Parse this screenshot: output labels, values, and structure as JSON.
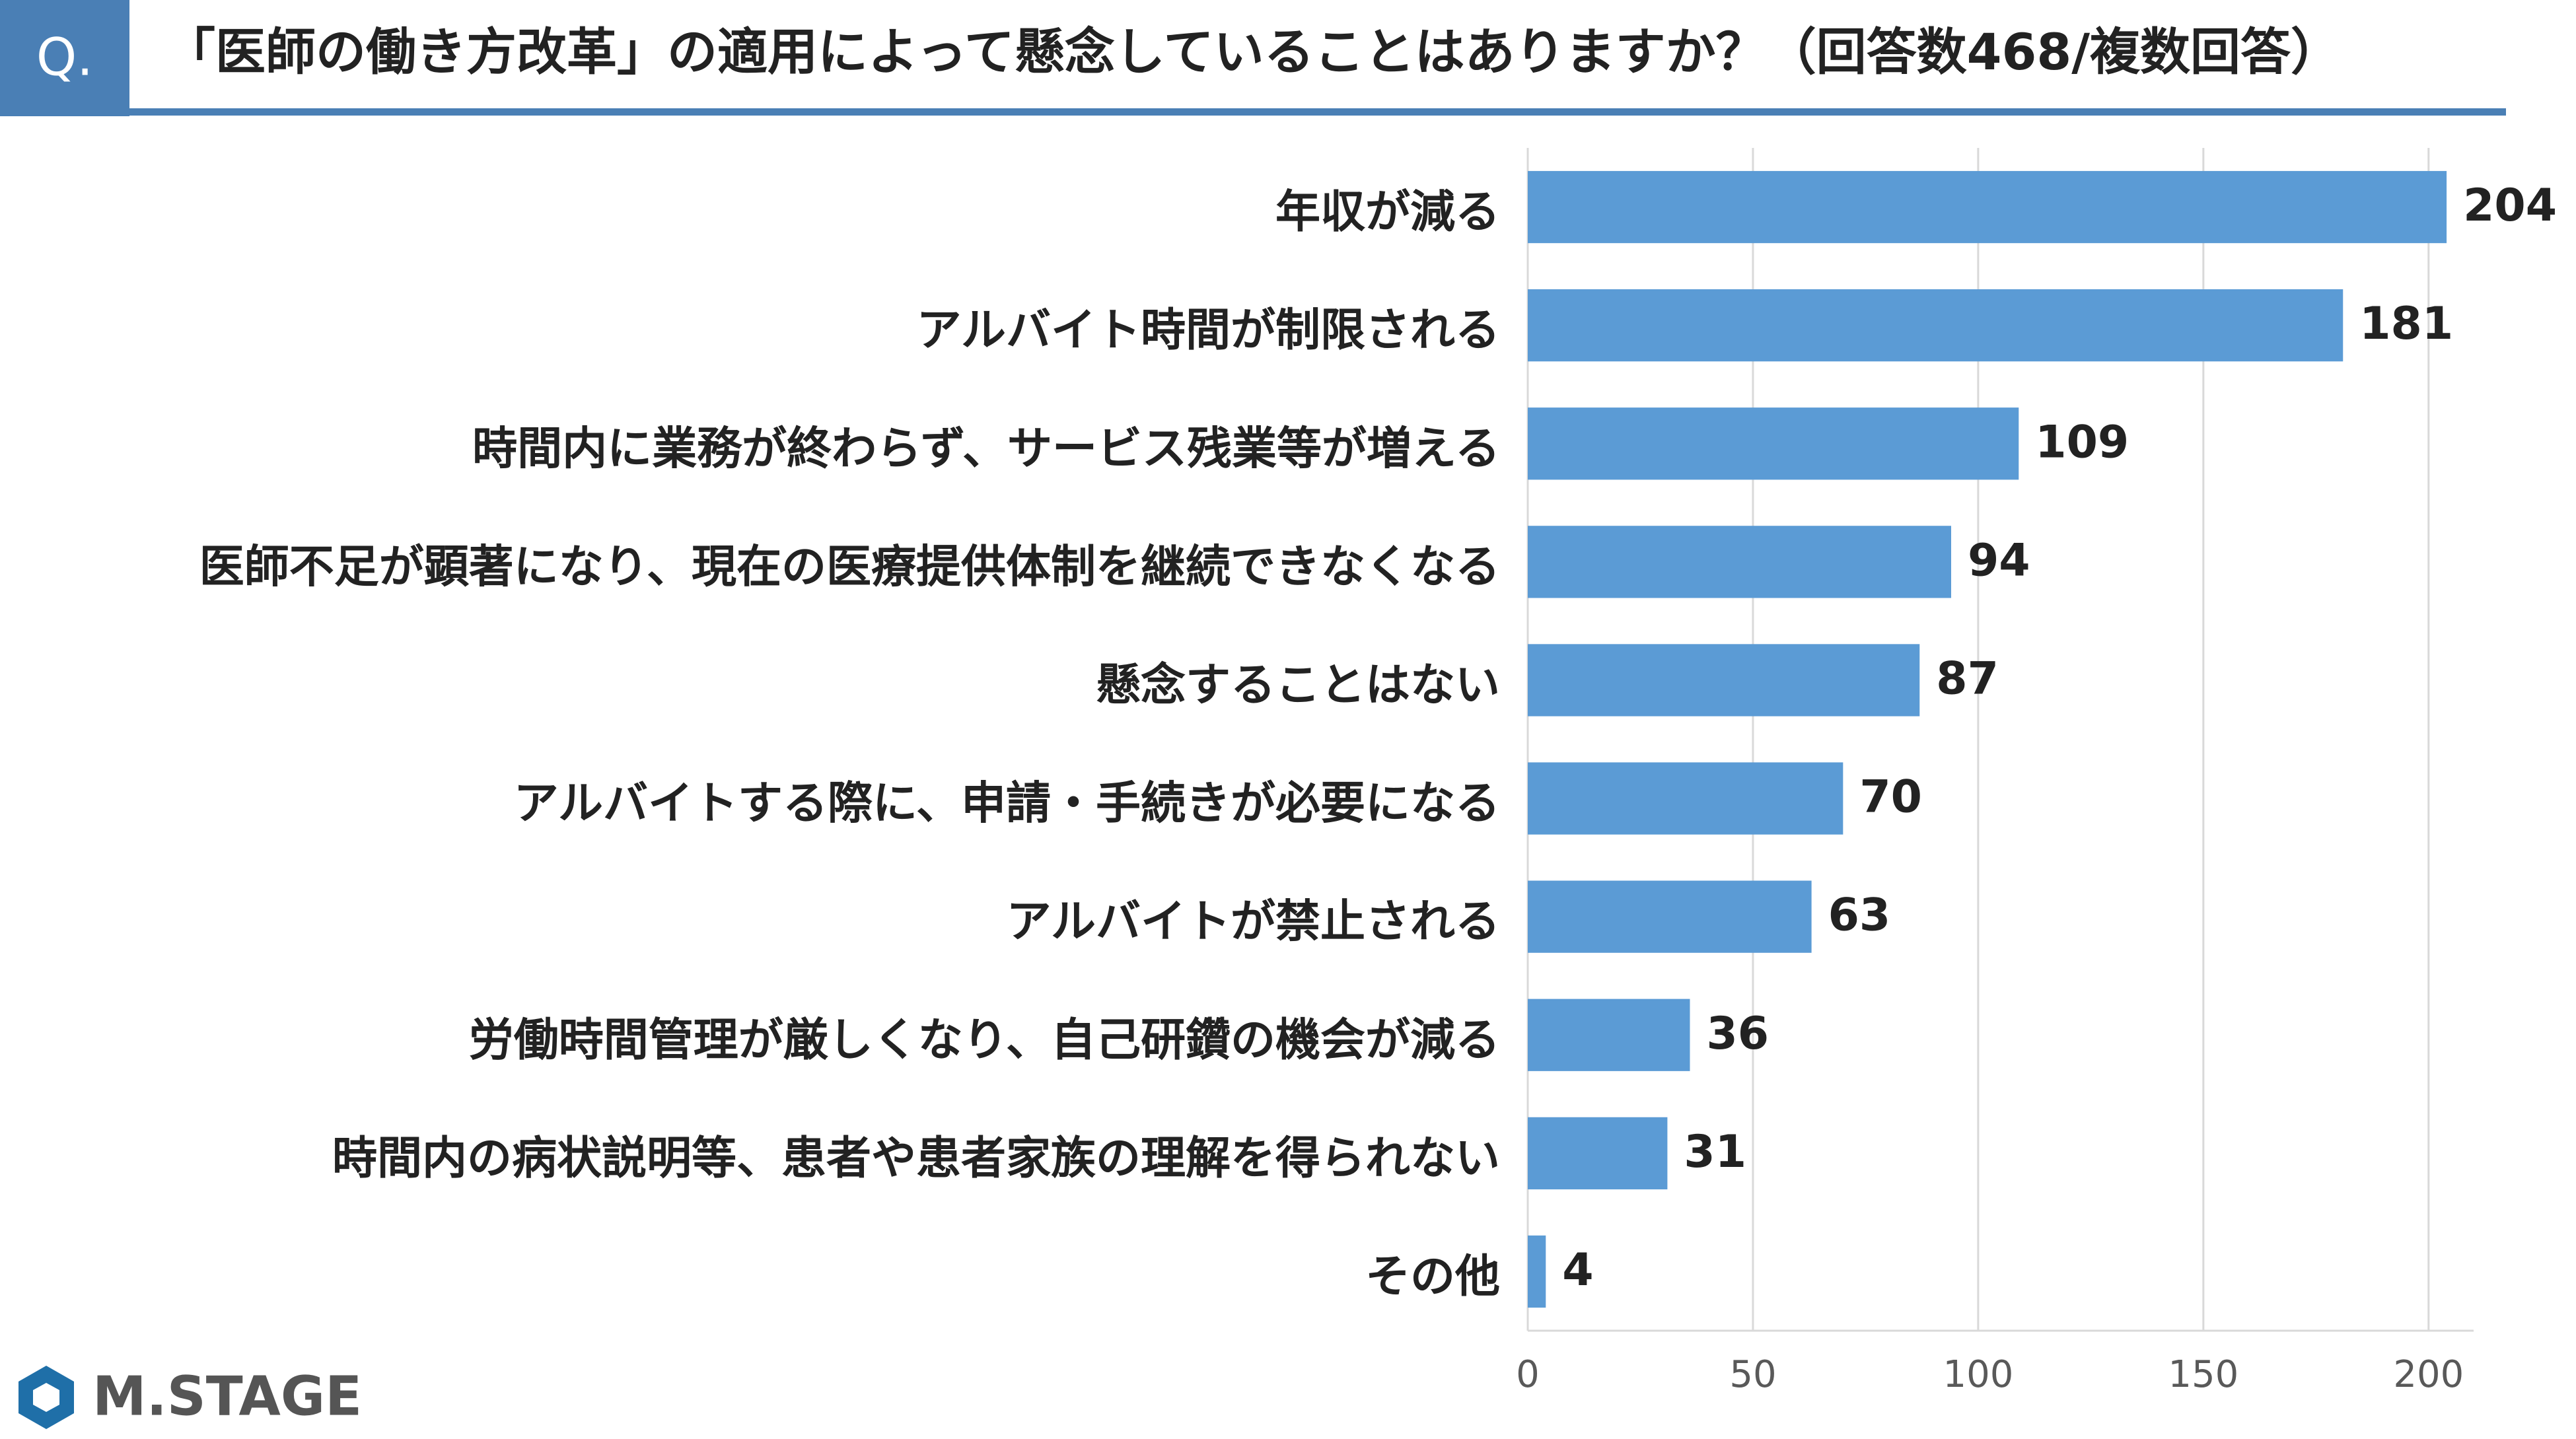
{
  "header": {
    "q": "Q.",
    "logo": "M.STAGE"
  },
  "chart_data": {
    "type": "barh",
    "title": "「医師の働き方改革」の適用によって懸念していることはありますか？（回答数468/複数回答）",
    "categories": [
      "年収が減る",
      "アルバイト時間が制限される",
      "時間内に業務が終わらず、サービス残業等が増える",
      "医師不足が顕著になり、現在の医療提供体制を継続できなくなる",
      "懸念することはない",
      "アルバイトする際に、申請・手続きが必要になる",
      "アルバイトが禁止される",
      "労働時間管理が厳しくなり、自己研鑽の機会が減る",
      "時間内の病状説明等、患者や患者家族の理解を得られない",
      "その他"
    ],
    "values": [
      204,
      181,
      109,
      94,
      87,
      70,
      63,
      36,
      31,
      4
    ],
    "color": "#5b9bd5",
    "xlim": [
      0,
      210
    ],
    "xticks": [
      0,
      50,
      100,
      150,
      200
    ],
    "grid": true
  }
}
